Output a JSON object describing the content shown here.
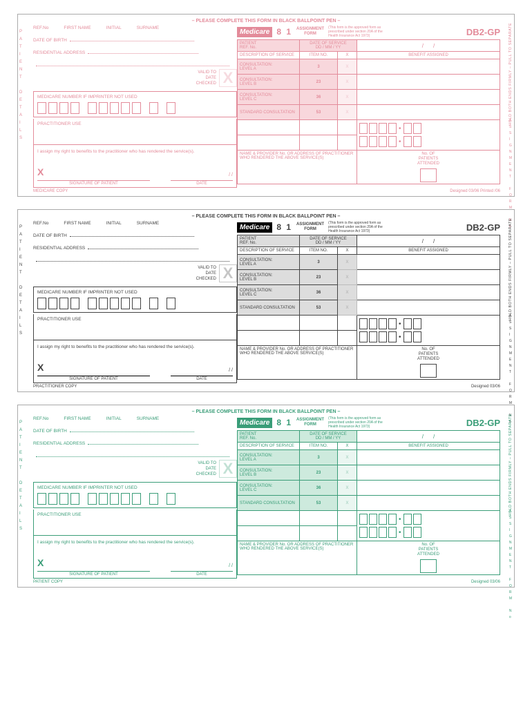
{
  "common": {
    "topbar": "– PLEASE COMPLETE THIS FORM IN BLACK BALLPOINT PEN –",
    "ref": "REF.No",
    "first": "FIRST NAME",
    "initial": "INITIAL",
    "surname": "SURNAME",
    "dob": "DATE OF BIRTH",
    "addr": "RESIDENTIAL ADDRESS",
    "valid1": "VALID TO",
    "valid2": "DATE",
    "valid3": "CHECKED",
    "medlabel": "MEDICARE NUMBER IF IMPRINTER NOT USED",
    "prac": "PRACTITIONER USE",
    "assigntxt": "I assign my right to benefits to the practitioner who has rendered the service(s).",
    "bigx": "X",
    "sig": "SIGNATURE OF PATIENT",
    "date": "DATE",
    "dateslash": "/        /",
    "logo": "Medicare",
    "num": "8 1",
    "asgn1": "ASSIGNMENT",
    "asgn2": "FORM",
    "note": "(This form is the approved form as prescribed under section 20A of the Health Insurance Act 1973)",
    "code": "DB2-GP",
    "patient": "PATIENT",
    "refno": "REF. No.",
    "dos": "DATE OF SERVICE",
    "dmy": "DD / MM / YY",
    "desc": "DESCRIPTION OF SERVICE",
    "itemno": "ITEM NO.",
    "xcol": "X",
    "ben": "BENEFIT ASSIGNED",
    "rows": [
      {
        "desc": "CONSULTATION: LEVEL A",
        "item": "3"
      },
      {
        "desc": "CONSULTATION: LEVEL B",
        "item": "23"
      },
      {
        "desc": "CONSULTATION: LEVEL C",
        "item": "36"
      },
      {
        "desc": "STANDARD CONSULTATION",
        "item": "53"
      }
    ],
    "prov": "NAME & PROVIDER No. OR ADDRESS OF PRACTITIONER WHO RENDERED THE ABOVE SERVICE(S)",
    "nopat1": "No. OF",
    "nopat2": "PATIENTS",
    "nopat3": "ATTENDED",
    "sideP": "P A T I E N T",
    "sideD": "D E T A I L S",
    "rightside": "HOLD BOTH ENDS FIRMLY – PULL TO SEPARATE",
    "asgntab1": "A S S I G N M E N T",
    "asgntab2": "F O R M",
    "no": "No",
    "dot": "•",
    "slash": "/"
  },
  "copies": [
    {
      "theme": "pink",
      "copy": "MEDICARE COPY",
      "designed": "Designed 03/06   Printed   /06"
    },
    {
      "theme": "grey",
      "copy": "PRACTITIONER COPY",
      "designed": "Designed 03/06"
    },
    {
      "theme": "green",
      "copy": "PATIENT COPY",
      "designed": "Designed 03/06"
    }
  ]
}
